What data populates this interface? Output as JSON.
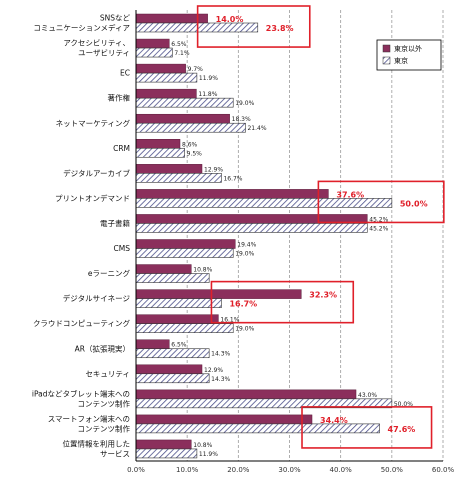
{
  "chart_data": {
    "type": "bar",
    "orientation": "horizontal",
    "categories": [
      [
        "SNSなど",
        "コミュニケーションメディア"
      ],
      [
        "アクセシビリティ、",
        "ユーザビリティ"
      ],
      [
        "EC"
      ],
      [
        "著作権"
      ],
      [
        "ネットマーケティング"
      ],
      [
        "CRM"
      ],
      [
        "デジタルアーカイブ"
      ],
      [
        "プリントオンデマンド"
      ],
      [
        "電子書籍"
      ],
      [
        "CMS"
      ],
      [
        "eラーニング"
      ],
      [
        "デジタルサイネージ"
      ],
      [
        "クラウドコンピューティング"
      ],
      [
        "AR（拡張現実）"
      ],
      [
        "セキュリティ"
      ],
      [
        "iPadなどタブレット端末への",
        "コンテンツ制作"
      ],
      [
        "スマートフォン端末への",
        "コンテンツ制作"
      ],
      [
        "位置情報を利用した",
        "サービス"
      ]
    ],
    "series": [
      {
        "name": "東京以外",
        "color": "#8B2F5C",
        "pattern": "solid",
        "values": [
          14.0,
          6.5,
          9.7,
          11.8,
          18.3,
          8.6,
          12.9,
          37.6,
          45.2,
          19.4,
          10.8,
          32.3,
          16.1,
          6.5,
          12.9,
          43.0,
          34.4,
          10.8
        ],
        "labels": [
          "",
          "6.5%",
          "9.7%",
          "11.8%",
          "18.3%",
          "8.6%",
          "12.9%",
          "",
          "45.2%",
          "19.4%",
          "10.8%",
          "",
          "16.1%",
          "6.5%",
          "12.9%",
          "43.0%",
          "",
          "10.8%"
        ]
      },
      {
        "name": "東京",
        "color": "#4B4F8A",
        "pattern": "hatched",
        "values": [
          23.8,
          7.1,
          11.9,
          19.0,
          21.4,
          9.5,
          16.7,
          50.0,
          45.2,
          19.0,
          14.3,
          16.7,
          19.0,
          14.3,
          14.3,
          50.0,
          47.6,
          11.9
        ],
        "labels": [
          "",
          "7.1%",
          "11.9%",
          "19.0%",
          "21.4%",
          "9.5%",
          "16.7%",
          "",
          "45.2%",
          "19.0%",
          "",
          "",
          "19.0%",
          "14.3%",
          "14.3%",
          "50.0%",
          "",
          "11.9%"
        ]
      }
    ],
    "xlim": [
      0,
      60
    ],
    "ticks": [
      "0.0%",
      "10.0%",
      "20.0%",
      "30.0%",
      "40.0%",
      "50.0%",
      "60.0%"
    ],
    "grid": "vertical dashed",
    "legend": "top-right",
    "highlights": [
      {
        "category_index": 0,
        "labels": [
          "14.0%",
          "23.8%"
        ],
        "color": "#E0202A"
      },
      {
        "category_index": 7,
        "labels": [
          "37.6%",
          "50.0%"
        ],
        "color": "#E0202A"
      },
      {
        "category_index": 11,
        "labels": [
          "32.3%",
          "16.7%"
        ],
        "color": "#E0202A"
      },
      {
        "category_index": 16,
        "labels": [
          "34.4%",
          "47.6%"
        ],
        "color": "#E0202A"
      }
    ]
  }
}
